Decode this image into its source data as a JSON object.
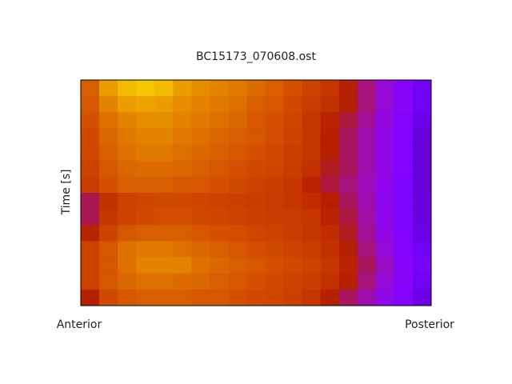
{
  "chart_data": {
    "type": "heatmap",
    "title": "BC15173_070608.ost",
    "ylabel": "Time [s]",
    "xlabels": [
      "Anterior",
      "Posterior"
    ],
    "colormap": "gnuplot",
    "z": [
      [
        0.72,
        0.85,
        0.9,
        0.92,
        0.9,
        0.85,
        0.82,
        0.8,
        0.78,
        0.75,
        0.72,
        0.68,
        0.64,
        0.6,
        0.5,
        0.42,
        0.34,
        0.28,
        0.2
      ],
      [
        0.7,
        0.8,
        0.85,
        0.86,
        0.85,
        0.82,
        0.8,
        0.78,
        0.76,
        0.72,
        0.7,
        0.66,
        0.62,
        0.58,
        0.5,
        0.42,
        0.34,
        0.28,
        0.2
      ],
      [
        0.68,
        0.76,
        0.8,
        0.82,
        0.82,
        0.8,
        0.78,
        0.76,
        0.74,
        0.7,
        0.68,
        0.65,
        0.6,
        0.52,
        0.46,
        0.4,
        0.33,
        0.26,
        0.18
      ],
      [
        0.66,
        0.74,
        0.78,
        0.8,
        0.8,
        0.78,
        0.76,
        0.74,
        0.72,
        0.7,
        0.67,
        0.64,
        0.6,
        0.5,
        0.44,
        0.38,
        0.32,
        0.25,
        0.16
      ],
      [
        0.66,
        0.72,
        0.76,
        0.78,
        0.78,
        0.76,
        0.74,
        0.72,
        0.7,
        0.68,
        0.66,
        0.63,
        0.6,
        0.5,
        0.44,
        0.38,
        0.32,
        0.25,
        0.16
      ],
      [
        0.64,
        0.7,
        0.74,
        0.75,
        0.75,
        0.74,
        0.72,
        0.7,
        0.68,
        0.66,
        0.65,
        0.62,
        0.58,
        0.48,
        0.44,
        0.38,
        0.32,
        0.25,
        0.16
      ],
      [
        0.62,
        0.68,
        0.72,
        0.72,
        0.72,
        0.7,
        0.7,
        0.68,
        0.66,
        0.64,
        0.62,
        0.6,
        0.52,
        0.46,
        0.42,
        0.37,
        0.31,
        0.24,
        0.16
      ],
      [
        0.45,
        0.58,
        0.64,
        0.65,
        0.66,
        0.66,
        0.65,
        0.64,
        0.63,
        0.62,
        0.61,
        0.6,
        0.56,
        0.5,
        0.44,
        0.38,
        0.31,
        0.24,
        0.17
      ],
      [
        0.45,
        0.6,
        0.64,
        0.66,
        0.67,
        0.68,
        0.66,
        0.65,
        0.64,
        0.63,
        0.62,
        0.61,
        0.6,
        0.52,
        0.46,
        0.39,
        0.31,
        0.24,
        0.17
      ],
      [
        0.52,
        0.64,
        0.7,
        0.72,
        0.72,
        0.72,
        0.7,
        0.68,
        0.67,
        0.65,
        0.64,
        0.62,
        0.6,
        0.56,
        0.48,
        0.4,
        0.32,
        0.25,
        0.18
      ],
      [
        0.64,
        0.7,
        0.76,
        0.78,
        0.78,
        0.76,
        0.74,
        0.72,
        0.7,
        0.68,
        0.66,
        0.64,
        0.62,
        0.58,
        0.5,
        0.42,
        0.34,
        0.26,
        0.2
      ],
      [
        0.64,
        0.7,
        0.76,
        0.8,
        0.8,
        0.8,
        0.76,
        0.74,
        0.72,
        0.7,
        0.68,
        0.66,
        0.64,
        0.6,
        0.52,
        0.44,
        0.36,
        0.28,
        0.22
      ],
      [
        0.64,
        0.7,
        0.74,
        0.76,
        0.76,
        0.75,
        0.74,
        0.72,
        0.7,
        0.68,
        0.66,
        0.64,
        0.62,
        0.58,
        0.5,
        0.42,
        0.34,
        0.28,
        0.2
      ],
      [
        0.5,
        0.66,
        0.7,
        0.72,
        0.72,
        0.72,
        0.7,
        0.7,
        0.68,
        0.66,
        0.65,
        0.63,
        0.6,
        0.5,
        0.44,
        0.38,
        0.32,
        0.26,
        0.18
      ]
    ]
  }
}
